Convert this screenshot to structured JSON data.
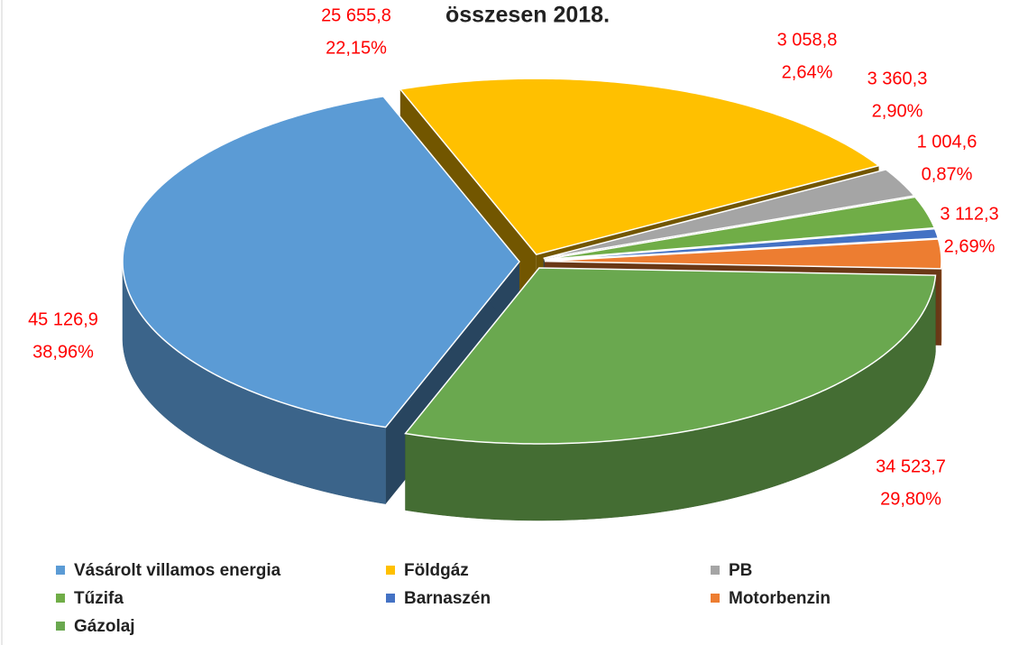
{
  "chart_data": {
    "type": "pie3d",
    "title": "összesen 2018.",
    "categories": [
      "Vásárolt villamos energia",
      "Földgáz",
      "PB",
      "Tűzifa",
      "Barnaszén",
      "Motorbenzin",
      "Gázolaj"
    ],
    "values": [
      45126.9,
      25655.8,
      3058.8,
      3360.3,
      1004.6,
      3112.3,
      34523.7
    ],
    "value_labels": [
      "45 126,9",
      "25 655,8",
      "3 058,8",
      "3 360,3",
      "1 004,6",
      "3 112,3",
      "34 523,7"
    ],
    "percents": [
      38.96,
      22.15,
      2.64,
      2.9,
      0.87,
      2.69,
      29.8
    ],
    "percent_labels": [
      "38,96%",
      "22,15%",
      "2,64%",
      "2,90%",
      "0,87%",
      "2,69%",
      "29,80%"
    ],
    "colors": [
      "#5b9bd5",
      "#ffc000",
      "#a5a5a5",
      "#70ad47",
      "#4472c4",
      "#ed7d31",
      "#6aa84f"
    ],
    "legend": "bottom"
  }
}
